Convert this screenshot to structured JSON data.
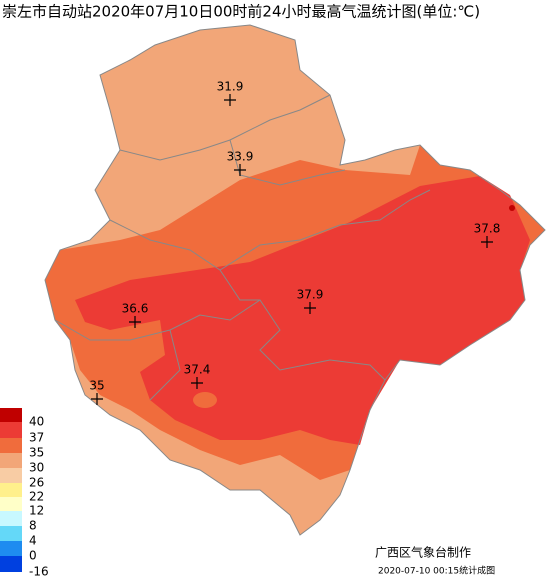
{
  "title": "崇左市自动站2020年07月10日00时前24小时最高气温统计图(单位:℃)",
  "stations": [
    31.9,
    33.9,
    37.8,
    37.9,
    36.6,
    37.4,
    35
  ],
  "legend": [
    40,
    37,
    35,
    30,
    26,
    22,
    12,
    8,
    4,
    0,
    -16
  ],
  "footer": {
    "agency": "广西区气象台制作",
    "timestamp": "2020-07-10 00:15统计成图"
  }
}
